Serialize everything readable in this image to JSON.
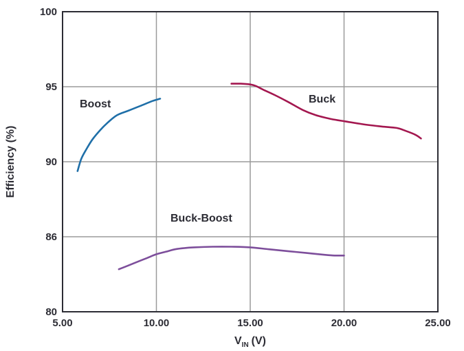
{
  "chart_data": {
    "type": "line",
    "title": "",
    "xlabel": "V",
    "xlabel_sub": "IN",
    "xlabel_unit": "(V)",
    "ylabel": "Efficiency (%)",
    "xlim": [
      5,
      25
    ],
    "x_ticks": [
      5,
      10,
      15,
      20,
      25
    ],
    "x_tick_labels": [
      "5.00",
      "10.00",
      "15.00",
      "20.00",
      "25.00"
    ],
    "y_tick_labels": [
      "80",
      "86",
      "90",
      "95",
      "100"
    ],
    "grid": true,
    "legend": "none (series labeled directly on plot)",
    "series": [
      {
        "name": "Boost",
        "color": "#1f6fa8",
        "x": [
          5.8,
          6.0,
          6.3,
          6.6,
          7.0,
          7.4,
          7.9,
          8.5,
          9.2,
          9.8,
          10.2
        ],
        "y": [
          89.5,
          90.2,
          90.9,
          91.5,
          92.1,
          92.6,
          93.1,
          93.4,
          93.75,
          94.05,
          94.2
        ]
      },
      {
        "name": "Buck",
        "color": "#a3174f",
        "x": [
          14.0,
          14.5,
          15.0,
          15.3,
          15.7,
          16.3,
          17.0,
          17.8,
          18.5,
          19.3,
          20.0,
          21.0,
          22.0,
          22.8,
          23.3,
          23.8,
          24.1
        ],
        "y": [
          95.2,
          95.2,
          95.15,
          95.05,
          94.8,
          94.45,
          94.0,
          93.45,
          93.1,
          92.85,
          92.7,
          92.5,
          92.35,
          92.25,
          92.05,
          91.8,
          91.55
        ]
      },
      {
        "name": "Buck-Boost",
        "color": "#7d4e9b",
        "x": [
          8.0,
          8.5,
          9.0,
          9.5,
          10.0,
          10.5,
          11.0,
          11.5,
          12.0,
          13.0,
          14.0,
          15.0,
          16.0,
          17.0,
          18.0,
          19.0,
          19.5,
          20.0
        ],
        "y": [
          83.4,
          83.7,
          84.0,
          84.3,
          84.6,
          84.8,
          85.0,
          85.1,
          85.15,
          85.2,
          85.2,
          85.15,
          85.0,
          84.85,
          84.7,
          84.55,
          84.5,
          84.5
        ]
      }
    ]
  }
}
